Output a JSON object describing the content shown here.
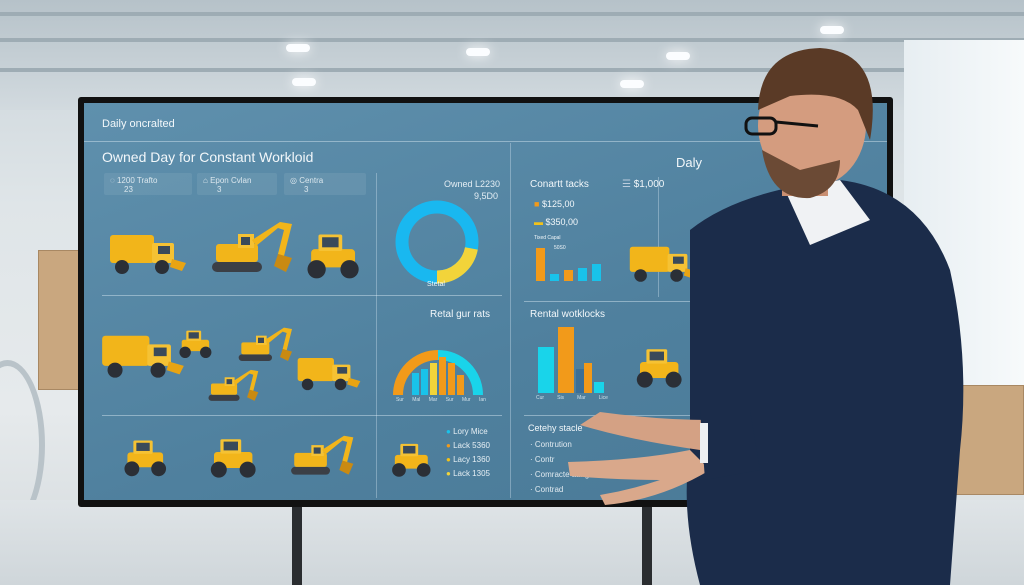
{
  "screen": {
    "header": "Daily oncralted",
    "left_title": "Owned Day for Constant Workloid",
    "stats": [
      {
        "label": "1200 Trafto",
        "value": "23"
      },
      {
        "label": "Epon Cvlan",
        "value": "3"
      },
      {
        "label": "Centra",
        "value": "3"
      }
    ],
    "donut": {
      "title": "Owned L2230",
      "subtitle": "9,5D0",
      "caption": "Stetal",
      "colors": [
        "#f2d43a",
        "#19b8f0"
      ],
      "fractions": [
        0.22,
        0.78
      ]
    },
    "rental_gauge": {
      "title": "Retal gur rats",
      "ticks": [
        "Sur",
        "Mal",
        "Mar",
        "Sur",
        "Mur",
        "Ian"
      ]
    },
    "legend": [
      {
        "label": "Lory Mice",
        "color": "#19c2ea"
      },
      {
        "label": "Lack 5360",
        "color": "#f29a1a"
      },
      {
        "label": "Lacy 1360",
        "color": "#f2c21a"
      },
      {
        "label": "Lack 1305",
        "color": "#f2d43a"
      }
    ],
    "right_title": "Daly",
    "contracts": {
      "title": "Conartt tacks",
      "total": "$1,000",
      "items": [
        {
          "label": "$125,00",
          "color": "#f29a1a"
        },
        {
          "label": "$350,00",
          "color": "#f2c21a"
        }
      ],
      "chart_label": "Tixed Capal",
      "bar_note": "50S0"
    },
    "rental_work": {
      "title": "Rental wotklocks",
      "ticks": [
        "Cur",
        "Sis",
        "Mar",
        "Lice"
      ]
    },
    "safety": {
      "title": "Cetehy stacle",
      "items": [
        "Contrution",
        "Contr",
        "Comracte ating",
        "Contrad"
      ]
    }
  },
  "colors": {
    "accent_orange": "#f29a1a",
    "accent_cyan": "#19c2ea",
    "screen_bg": "#5586a3",
    "suit": "#1b2c4a"
  }
}
